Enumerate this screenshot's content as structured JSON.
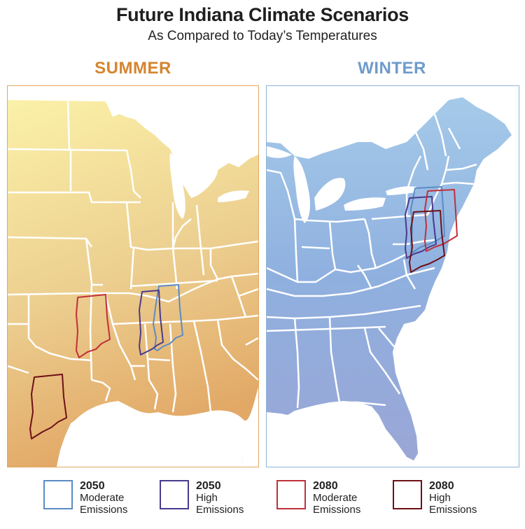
{
  "title": "Future Indiana Climate Scenarios",
  "subtitle": "As Compared to Today’s Temperatures",
  "summer": {
    "label": "SUMMER",
    "color": "#d4852f",
    "border": "#e2a863"
  },
  "winter": {
    "label": "WINTER",
    "color": "#6e9ccc",
    "border": "#8fb3d6"
  },
  "legend": [
    {
      "year": "2050",
      "line1": "Moderate",
      "line2": "Emissions",
      "color": "#5b8cc4"
    },
    {
      "year": "2050",
      "line1": "High",
      "line2": "Emissions",
      "color": "#4a3a8c"
    },
    {
      "year": "2080",
      "line1": "Moderate",
      "line2": "Emissions",
      "color": "#c0303a"
    },
    {
      "year": "2080",
      "line1": "High",
      "line2": "Emissions",
      "color": "#6e1018"
    }
  ]
}
